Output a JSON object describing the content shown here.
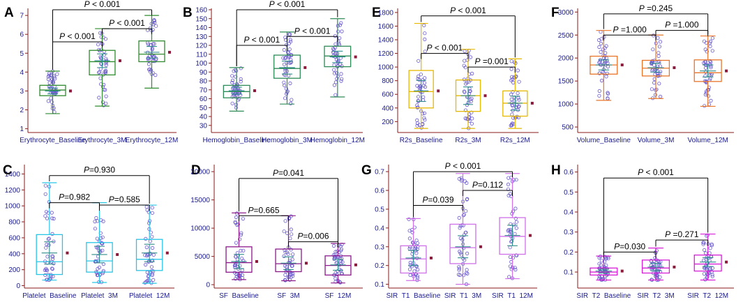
{
  "figure": {
    "colors": {
      "axis": "#8b1a1a",
      "tick_text": "#1a1a8c",
      "label_text": "#1a1a8c",
      "mean_marker": "#8b1a3a",
      "bracket": "#000000",
      "ci_line": "#2e8b8b",
      "point": "#6a5acd"
    }
  },
  "chart_data": [
    {
      "panel": "A",
      "type": "box",
      "categories": [
        "Erythrocyte_Baseline",
        "Erythrocyte_3M",
        "Erythrocyte_12M"
      ],
      "color": "#2e8b2e",
      "ylim": [
        0.8,
        7.3
      ],
      "yticks": [
        1,
        2,
        3,
        4,
        5,
        6,
        7
      ],
      "boxes": [
        {
          "min": 1.8,
          "q1": 2.75,
          "median": 3.05,
          "q3": 3.3,
          "max": 4.05,
          "mean": 3.0
        },
        {
          "min": 2.2,
          "q1": 3.85,
          "median": 4.55,
          "q3": 5.15,
          "max": 6.3,
          "mean": 4.6
        },
        {
          "min": 3.15,
          "q1": 4.55,
          "median": 4.95,
          "q3": 5.65,
          "max": 7.0,
          "mean": 5.05
        }
      ],
      "comparisons": [
        {
          "from": 0,
          "to": 1,
          "label": "P < 0.001",
          "y": 5.6
        },
        {
          "from": 1,
          "to": 2,
          "label": "P < 0.001",
          "y": 6.3
        },
        {
          "from": 0,
          "to": 2,
          "label": "P < 0.001",
          "y": 7.3
        }
      ]
    },
    {
      "panel": "B",
      "type": "box",
      "categories": [
        "Hemoglobin_Baseline",
        "Hemoglobin_3M",
        "Hemoglobin_12M"
      ],
      "color": "#2e8b57",
      "ylim": [
        22,
        160
      ],
      "yticks": [
        30,
        40,
        50,
        60,
        70,
        80,
        90,
        100,
        110,
        120,
        130,
        140,
        150,
        160
      ],
      "boxes": [
        {
          "min": 46,
          "q1": 61,
          "median": 68,
          "q3": 75,
          "max": 95,
          "mean": 69
        },
        {
          "min": 54,
          "q1": 83,
          "median": 94,
          "q3": 109,
          "max": 135,
          "mean": 95
        },
        {
          "min": 62,
          "q1": 96,
          "median": 108,
          "q3": 119,
          "max": 150,
          "mean": 107
        }
      ],
      "comparisons": [
        {
          "from": 0,
          "to": 1,
          "label": "P < 0.001",
          "y": 120
        },
        {
          "from": 1,
          "to": 2,
          "label": "P < 0.001",
          "y": 130
        },
        {
          "from": 0,
          "to": 2,
          "label": "P < 0.001",
          "y": 160
        }
      ]
    },
    {
      "panel": "E",
      "type": "box",
      "categories": [
        "R2s_Baseline",
        "R2s_3M",
        "R2s_12M"
      ],
      "color": "#e6b800",
      "ylim": [
        40,
        1840
      ],
      "yticks": [
        200,
        400,
        600,
        800,
        1000,
        1200,
        1400,
        1600,
        1800
      ],
      "boxes": [
        {
          "min": 100,
          "q1": 400,
          "median": 640,
          "q3": 950,
          "max": 1640,
          "mean": 650
        },
        {
          "min": 100,
          "q1": 350,
          "median": 580,
          "q3": 810,
          "max": 1260,
          "mean": 580
        },
        {
          "min": 100,
          "q1": 280,
          "median": 470,
          "q3": 650,
          "max": 1120,
          "mean": 470
        }
      ],
      "comparisons": [
        {
          "from": 0,
          "to": 1,
          "label": "P < 0.001",
          "y": 1200
        },
        {
          "from": 1,
          "to": 2,
          "label": "P =0.001",
          "y": 1000
        },
        {
          "from": 0,
          "to": 2,
          "label": "P < 0.001",
          "y": 1750
        }
      ]
    },
    {
      "panel": "F",
      "type": "box",
      "categories": [
        "Volume_Baseline",
        "Volume_3M",
        "Volume_12M"
      ],
      "color": "#e8742a",
      "ylim": [
        380,
        3050
      ],
      "yticks": [
        500,
        1000,
        1500,
        2000,
        2500,
        3000
      ],
      "boxes": [
        {
          "min": 1080,
          "q1": 1650,
          "median": 1850,
          "q3": 2040,
          "max": 2600,
          "mean": 1850
        },
        {
          "min": 1120,
          "q1": 1610,
          "median": 1780,
          "q3": 1950,
          "max": 2500,
          "mean": 1790
        },
        {
          "min": 950,
          "q1": 1490,
          "median": 1680,
          "q3": 1960,
          "max": 2480,
          "mean": 1720
        }
      ],
      "comparisons": [
        {
          "from": 0,
          "to": 1,
          "label": "P =1.000",
          "y": 2500
        },
        {
          "from": 1,
          "to": 2,
          "label": "P =1.000",
          "y": 2600
        },
        {
          "from": 0,
          "to": 2,
          "label": "P =0.245",
          "y": 2960
        }
      ]
    },
    {
      "panel": "C",
      "type": "box",
      "categories": [
        "Platelet_Baseline",
        "Platelet_3M",
        "Platelet_12M"
      ],
      "color": "#29c5e6",
      "ylim": [
        -30,
        1500
      ],
      "yticks": [
        0,
        200,
        400,
        600,
        800,
        1000,
        1200,
        1400
      ],
      "boxes": [
        {
          "min": 70,
          "q1": 140,
          "median": 300,
          "q3": 640,
          "max": 1290,
          "mean": 410
        },
        {
          "min": 40,
          "q1": 170,
          "median": 310,
          "q3": 540,
          "max": 1040,
          "mean": 390
        },
        {
          "min": 30,
          "q1": 190,
          "median": 330,
          "q3": 580,
          "max": 1010,
          "mean": 410
        }
      ],
      "comparisons": [
        {
          "from": 0,
          "to": 1,
          "label": "P=0.982",
          "y": 1040
        },
        {
          "from": 1,
          "to": 2,
          "label": "P=0.585",
          "y": 1010
        },
        {
          "from": 0,
          "to": 2,
          "label": "P=0.930",
          "y": 1380
        }
      ]
    },
    {
      "panel": "D",
      "type": "box",
      "categories": [
        "SF_Baseline",
        "SF_3M",
        "SF_12M"
      ],
      "color": "#8b1a8b",
      "ylim": [
        -600,
        21000
      ],
      "yticks": [
        0,
        5000,
        10000,
        15000,
        20000
      ],
      "boxes": [
        {
          "min": 900,
          "q1": 2200,
          "median": 3900,
          "q3": 6700,
          "max": 12700,
          "mean": 4100
        },
        {
          "min": 700,
          "q1": 2300,
          "median": 3700,
          "q3": 6300,
          "max": 12200,
          "mean": 3800
        },
        {
          "min": 300,
          "q1": 1700,
          "median": 3400,
          "q3": 5100,
          "max": 7300,
          "mean": 3500
        }
      ],
      "comparisons": [
        {
          "from": 0,
          "to": 1,
          "label": "P=0.665",
          "y": 12200
        },
        {
          "from": 1,
          "to": 2,
          "label": "P=0.006",
          "y": 7600
        },
        {
          "from": 0,
          "to": 2,
          "label": "P=0.041",
          "y": 18800
        }
      ]
    },
    {
      "panel": "G",
      "type": "box",
      "categories": [
        "SIR_T1_Baseline",
        "SIR_T1_3M",
        "SIR_T1_12M"
      ],
      "color": "#d070e8",
      "ylim": [
        0.08,
        0.73
      ],
      "yticks": [
        0.1,
        0.2,
        0.3,
        0.4,
        0.5,
        0.6,
        0.7
      ],
      "boxes": [
        {
          "min": 0.12,
          "q1": 0.16,
          "median": 0.235,
          "q3": 0.305,
          "max": 0.45,
          "mean": 0.24
        },
        {
          "min": 0.1,
          "q1": 0.21,
          "median": 0.295,
          "q3": 0.42,
          "max": 0.69,
          "mean": 0.3
        },
        {
          "min": 0.13,
          "q1": 0.26,
          "median": 0.355,
          "q3": 0.455,
          "max": 0.69,
          "mean": 0.36
        }
      ],
      "comparisons": [
        {
          "from": 0,
          "to": 1,
          "label": "P=0.039",
          "y": 0.52
        },
        {
          "from": 1,
          "to": 2,
          "label": "P=0.112",
          "y": 0.6
        },
        {
          "from": 0,
          "to": 2,
          "label": "P < 0.001",
          "y": 0.7
        }
      ]
    },
    {
      "panel": "H",
      "type": "box",
      "categories": [
        "SIR_T2_Baseline",
        "SIR_T2_3M",
        "SIR_T2_12M"
      ],
      "color": "#d61fd6",
      "ylim": [
        0.02,
        0.63
      ],
      "yticks": [
        0.1,
        0.2,
        0.3,
        0.4,
        0.5,
        0.6
      ],
      "boxes": [
        {
          "min": 0.06,
          "q1": 0.085,
          "median": 0.1,
          "q3": 0.12,
          "max": 0.18,
          "mean": 0.105
        },
        {
          "min": 0.06,
          "q1": 0.095,
          "median": 0.12,
          "q3": 0.16,
          "max": 0.22,
          "mean": 0.125
        },
        {
          "min": 0.06,
          "q1": 0.105,
          "median": 0.14,
          "q3": 0.185,
          "max": 0.29,
          "mean": 0.15
        }
      ],
      "comparisons": [
        {
          "from": 0,
          "to": 1,
          "label": "P=0.030",
          "y": 0.2
        },
        {
          "from": 1,
          "to": 2,
          "label": "P =0.271",
          "y": 0.26
        },
        {
          "from": 0,
          "to": 2,
          "label": "P < 0.001",
          "y": 0.57
        }
      ]
    }
  ]
}
